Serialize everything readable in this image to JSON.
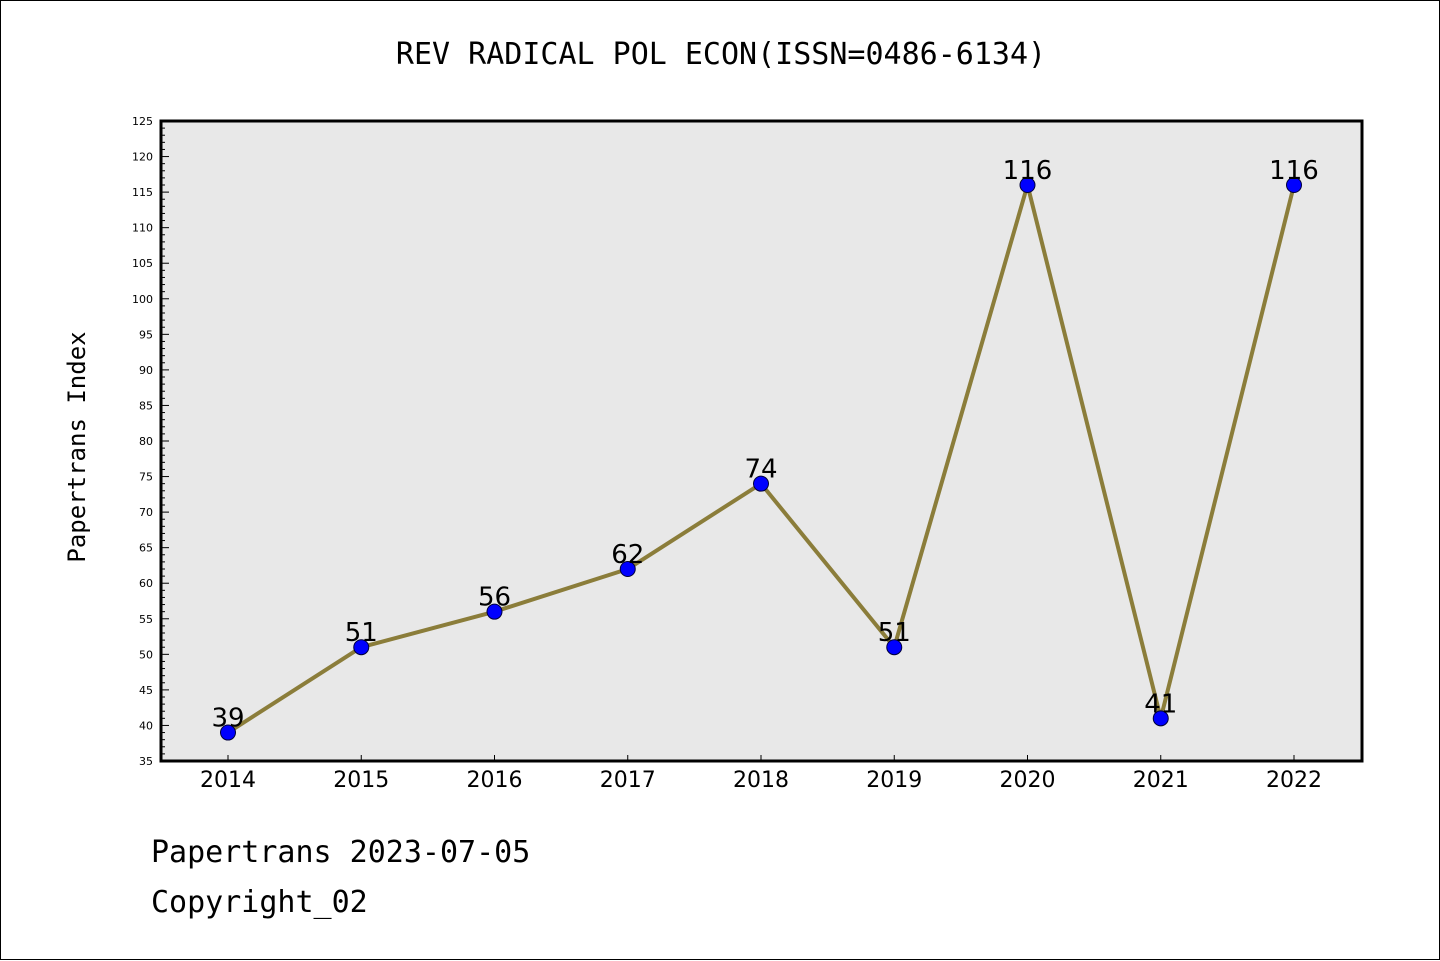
{
  "chart_data": {
    "type": "line",
    "title": "REV RADICAL POL ECON(ISSN=0486-6134)",
    "ylabel": "Papertrans Index",
    "xlabel": "",
    "categories": [
      "2014",
      "2015",
      "2016",
      "2017",
      "2018",
      "2019",
      "2020",
      "2021",
      "2022"
    ],
    "series": [
      {
        "values": [
          39,
          51,
          56,
          62,
          74,
          51,
          116,
          41,
          116
        ]
      }
    ],
    "ylim": [
      35,
      125
    ],
    "yticks": [
      35,
      40,
      45,
      50,
      55,
      60,
      65,
      70,
      75,
      80,
      85,
      90,
      95,
      100,
      105,
      110,
      115,
      120,
      125
    ],
    "grid": false,
    "data_labels": true,
    "colors": {
      "line": "#8b7d3a",
      "marker": "#0000ff",
      "plot_background": "#e8e8e8"
    }
  },
  "footer": {
    "date_line": "Papertrans 2023-07-05",
    "copyright": "Copyright_02"
  }
}
